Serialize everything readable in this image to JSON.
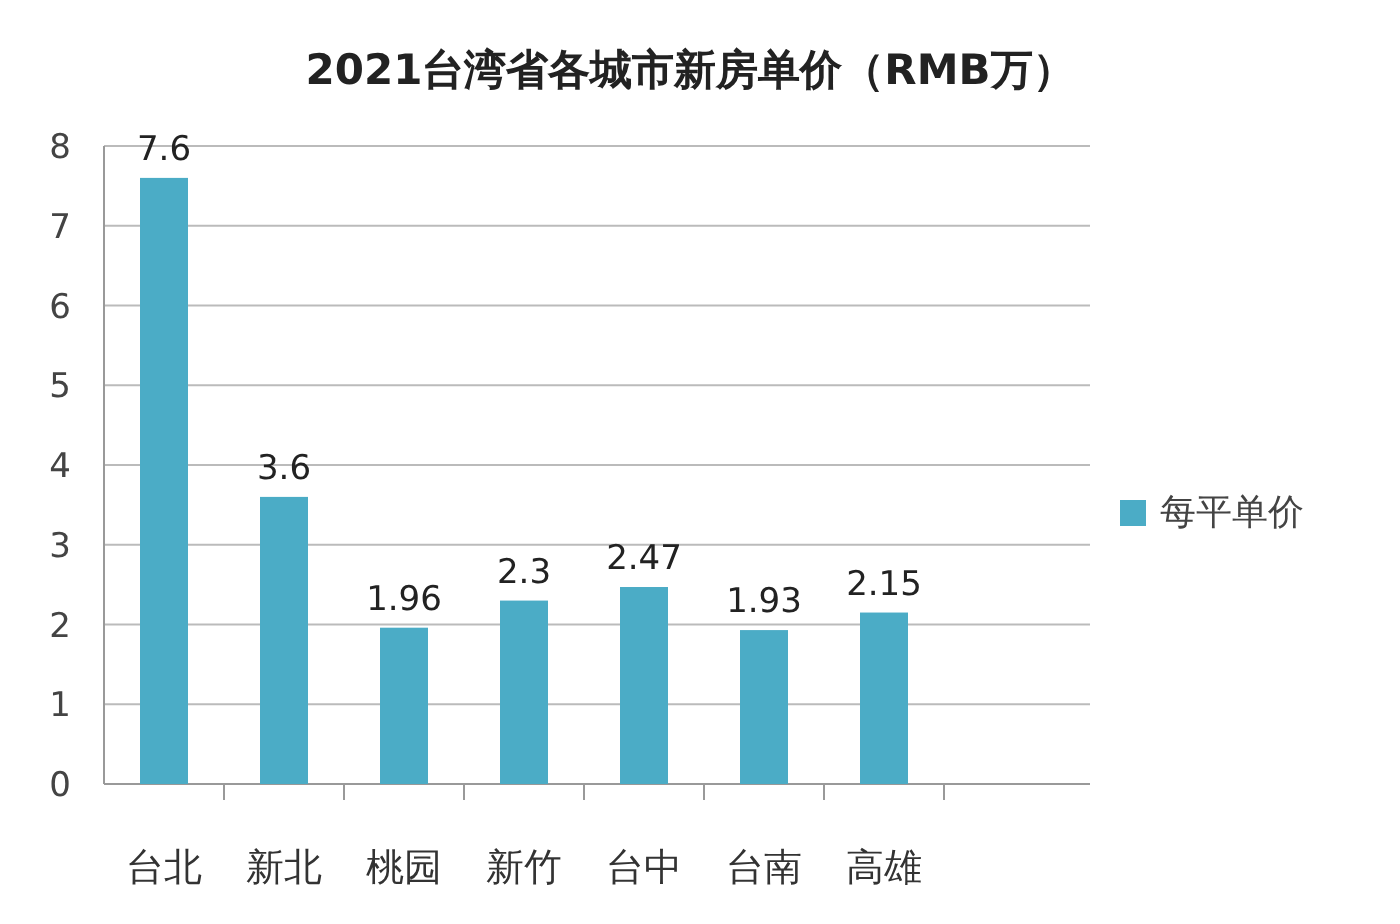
{
  "chart_data": {
    "type": "bar",
    "title": "2021台湾省各城市新房单价（RMB万）",
    "categories": [
      "台北",
      "新北",
      "桃园",
      "新竹",
      "台中",
      "台南",
      "高雄"
    ],
    "series": [
      {
        "name": "每平单价",
        "color": "#4bacc6",
        "values": [
          7.6,
          3.6,
          1.96,
          2.3,
          2.47,
          1.93,
          2.15
        ]
      }
    ],
    "ylim": [
      0,
      8
    ],
    "yticks": [
      0,
      1,
      2,
      3,
      4,
      5,
      6,
      7,
      8
    ],
    "grid": "y",
    "legend": "right",
    "data_labels": true
  }
}
